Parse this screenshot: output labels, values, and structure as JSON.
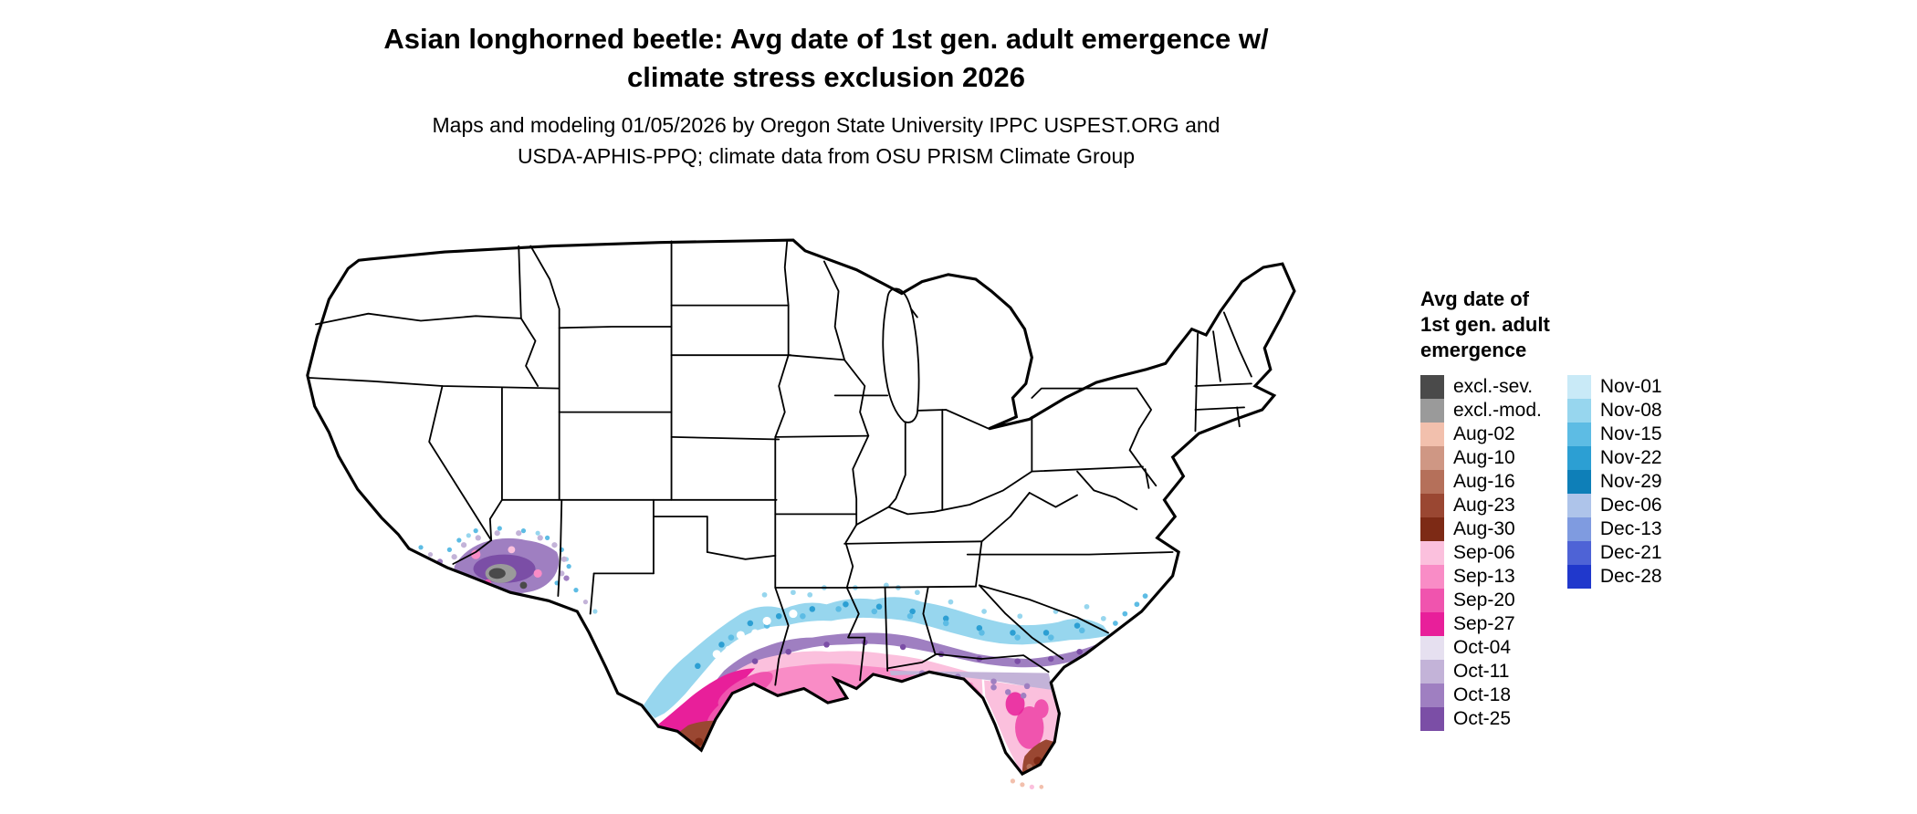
{
  "title": {
    "line1": "Asian longhorned beetle: Avg date of 1st gen. adult emergence w/",
    "line2": "climate stress exclusion 2026"
  },
  "subtitle": {
    "line1": "Maps and modeling 01/05/2026 by Oregon State University IPPC USPEST.ORG and",
    "line2": "USDA-APHIS-PPQ; climate data from OSU PRISM Climate Group"
  },
  "map": {
    "description": "Contiguous United States state outline map with modeled average emergence-date color overlay across the southern states"
  },
  "legend": {
    "title_lines": "Avg date of\n1st gen. adult\nemergence",
    "columns": [
      {
        "entries": [
          {
            "label": "excl.-sev.",
            "color": "#4a4a4a"
          },
          {
            "label": "excl.-mod.",
            "color": "#9a9a9a"
          },
          {
            "label": "Aug-02",
            "color": "#f2c0ad"
          },
          {
            "label": "Aug-10",
            "color": "#cf9784"
          },
          {
            "label": "Aug-16",
            "color": "#b5705a"
          },
          {
            "label": "Aug-23",
            "color": "#9a4732"
          },
          {
            "label": "Aug-30",
            "color": "#7d2a15"
          },
          {
            "label": "Sep-06",
            "color": "#fbc0dd"
          },
          {
            "label": "Sep-13",
            "color": "#f98cc6"
          },
          {
            "label": "Sep-20",
            "color": "#f054ae"
          },
          {
            "label": "Sep-27",
            "color": "#e81f9a"
          },
          {
            "label": "Oct-04",
            "color": "#e6e0f0"
          },
          {
            "label": "Oct-11",
            "color": "#c3b3d8"
          },
          {
            "label": "Oct-18",
            "color": "#9f7fc1"
          },
          {
            "label": "Oct-25",
            "color": "#7b4ea6"
          }
        ]
      },
      {
        "entries": [
          {
            "label": "Nov-01",
            "color": "#c9eaf7"
          },
          {
            "label": "Nov-08",
            "color": "#97d6ee"
          },
          {
            "label": "Nov-15",
            "color": "#5dbce4"
          },
          {
            "label": "Nov-22",
            "color": "#2c9fd3"
          },
          {
            "label": "Nov-29",
            "color": "#0e7fb8"
          },
          {
            "label": "Dec-06",
            "color": "#aec4ea"
          },
          {
            "label": "Dec-13",
            "color": "#7f9be0"
          },
          {
            "label": "Dec-21",
            "color": "#4e63d6"
          },
          {
            "label": "Dec-28",
            "color": "#2038cc"
          }
        ]
      }
    ]
  }
}
